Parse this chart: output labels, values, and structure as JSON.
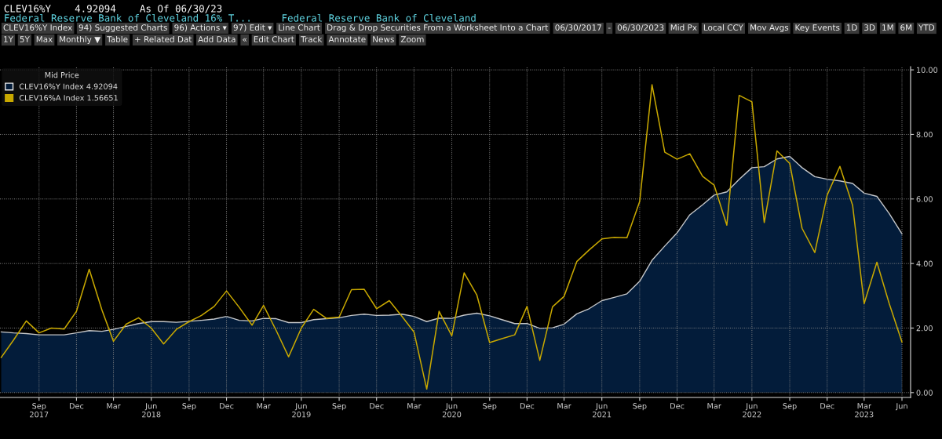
{
  "chart_data": {
    "type": "area",
    "title": "CLEV16%Y    4.92094    As Of 06/30/23",
    "subtitle": "Federal Reserve Bank of Cleveland 16% T...     Federal Reserve Bank of Cleveland",
    "legend_title": "Mid Price",
    "annotations": [
      "CLEV16%Y Index",
      "94) Suggested Charts",
      "96) Actions ▾",
      "97) Edit ▾",
      "Line Chart",
      "Drag & Drop Securities From a Worksheet Into a Chart",
      "06/30/2017",
      "-",
      "06/30/2023",
      "Mid Px",
      "Local CCY",
      "Mov Avgs",
      "Key Events",
      "1D",
      "3D",
      "1M",
      "6M",
      "YTD",
      "1Y",
      "5Y",
      "Max",
      "Monthly ▼",
      "Table",
      "+ Related Dat",
      "Add Data",
      "«",
      "Edit Chart",
      "Track",
      "Annotate",
      "News",
      "Zoom"
    ],
    "x": [
      "2017-06",
      "2017-07",
      "2017-08",
      "2017-09",
      "2017-10",
      "2017-11",
      "2017-12",
      "2018-01",
      "2018-02",
      "2018-03",
      "2018-04",
      "2018-05",
      "2018-06",
      "2018-07",
      "2018-08",
      "2018-09",
      "2018-10",
      "2018-11",
      "2018-12",
      "2019-01",
      "2019-02",
      "2019-03",
      "2019-04",
      "2019-05",
      "2019-06",
      "2019-07",
      "2019-08",
      "2019-09",
      "2019-10",
      "2019-11",
      "2019-12",
      "2020-01",
      "2020-02",
      "2020-03",
      "2020-04",
      "2020-05",
      "2020-06",
      "2020-07",
      "2020-08",
      "2020-09",
      "2020-10",
      "2020-11",
      "2020-12",
      "2021-01",
      "2021-02",
      "2021-03",
      "2021-04",
      "2021-05",
      "2021-06",
      "2021-07",
      "2021-08",
      "2021-09",
      "2021-10",
      "2021-11",
      "2021-12",
      "2022-01",
      "2022-02",
      "2022-03",
      "2022-04",
      "2022-05",
      "2022-06",
      "2022-07",
      "2022-08",
      "2022-09",
      "2022-10",
      "2022-11",
      "2022-12",
      "2023-01",
      "2023-02",
      "2023-03",
      "2023-04",
      "2023-05",
      "2023-06"
    ],
    "series": [
      {
        "name": "CLEV16%Y Index 4.92094",
        "color": "#031c3a",
        "values": [
          1.88,
          1.85,
          1.83,
          1.79,
          1.79,
          1.79,
          1.85,
          1.92,
          1.9,
          1.96,
          2.05,
          2.14,
          2.2,
          2.2,
          2.18,
          2.21,
          2.24,
          2.28,
          2.36,
          2.24,
          2.22,
          2.3,
          2.29,
          2.17,
          2.17,
          2.26,
          2.29,
          2.32,
          2.39,
          2.43,
          2.39,
          2.4,
          2.43,
          2.36,
          2.2,
          2.31,
          2.3,
          2.4,
          2.46,
          2.38,
          2.26,
          2.14,
          2.14,
          1.99,
          2.01,
          2.12,
          2.44,
          2.6,
          2.85,
          2.95,
          3.06,
          3.45,
          4.1,
          4.54,
          4.95,
          5.51,
          5.82,
          6.12,
          6.22,
          6.61,
          6.97,
          7.0,
          7.24,
          7.32,
          6.97,
          6.69,
          6.61,
          6.56,
          6.48,
          6.18,
          6.08,
          5.55,
          4.92
        ]
      },
      {
        "name": "CLEV16%A Index 1.56651",
        "type": "line",
        "color": "#c8a800",
        "values": [
          1.09,
          1.63,
          2.22,
          1.85,
          2.0,
          1.97,
          2.52,
          3.82,
          2.56,
          1.59,
          2.12,
          2.32,
          2.0,
          1.51,
          1.96,
          2.2,
          2.39,
          2.67,
          3.15,
          2.64,
          2.09,
          2.7,
          1.92,
          1.11,
          2.0,
          2.58,
          2.3,
          2.34,
          3.19,
          3.2,
          2.6,
          2.85,
          2.36,
          1.88,
          0.11,
          2.52,
          1.76,
          3.71,
          3.02,
          1.55,
          1.67,
          1.79,
          2.67,
          1.0,
          2.66,
          2.98,
          4.06,
          4.42,
          4.76,
          4.81,
          4.8,
          5.92,
          9.54,
          7.45,
          7.23,
          7.4,
          6.7,
          6.43,
          5.19,
          9.21,
          9.01,
          5.27,
          7.49,
          7.1,
          5.09,
          4.34,
          6.12,
          7.01,
          5.8,
          2.76,
          4.04,
          2.76,
          1.57
        ]
      }
    ],
    "xlim": [
      "2017-05-29",
      "2023-06-22"
    ],
    "xticks": [
      {
        "value": "2017-09",
        "label": "Sep\n2017"
      },
      {
        "value": "2017-12",
        "label": "Dec"
      },
      {
        "value": "2018-03",
        "label": "Mar"
      },
      {
        "value": "2018-06",
        "label": "Jun\n2018"
      },
      {
        "value": "2018-09",
        "label": "Sep"
      },
      {
        "value": "2018-12",
        "label": "Dec"
      },
      {
        "value": "2019-03",
        "label": "Mar"
      },
      {
        "value": "2019-06",
        "label": "Jun\n2019"
      },
      {
        "value": "2019-09",
        "label": "Sep"
      },
      {
        "value": "2019-12",
        "label": "Dec"
      },
      {
        "value": "2020-03",
        "label": "Mar"
      },
      {
        "value": "2020-06",
        "label": "Jun\n2020"
      },
      {
        "value": "2020-09",
        "label": "Sep"
      },
      {
        "value": "2020-12",
        "label": "Dec"
      },
      {
        "value": "2021-03",
        "label": "Mar"
      },
      {
        "value": "2021-06",
        "label": "Jun\n2021"
      },
      {
        "value": "2021-09",
        "label": "Sep"
      },
      {
        "value": "2021-12",
        "label": "Dec"
      },
      {
        "value": "2022-03",
        "label": "Mar"
      },
      {
        "value": "2022-06",
        "label": "Jun\n2022"
      },
      {
        "value": "2022-09",
        "label": "Sep"
      },
      {
        "value": "2022-12",
        "label": "Dec"
      },
      {
        "value": "2023-03",
        "label": "Mar\n2023"
      },
      {
        "value": "2023-06",
        "label": "Jun"
      }
    ],
    "ylim": [
      -0.15,
      10.1
    ],
    "yticks": [
      {
        "value": 0,
        "label": "0.00"
      },
      {
        "value": 2,
        "label": "2.00"
      },
      {
        "value": 4,
        "label": "4.00"
      },
      {
        "value": 6,
        "label": "6.00"
      },
      {
        "value": 8,
        "label": "8.00"
      },
      {
        "value": 10,
        "label": "10.00"
      }
    ],
    "grid": true,
    "line_style": "solid",
    "legend": "top left"
  }
}
